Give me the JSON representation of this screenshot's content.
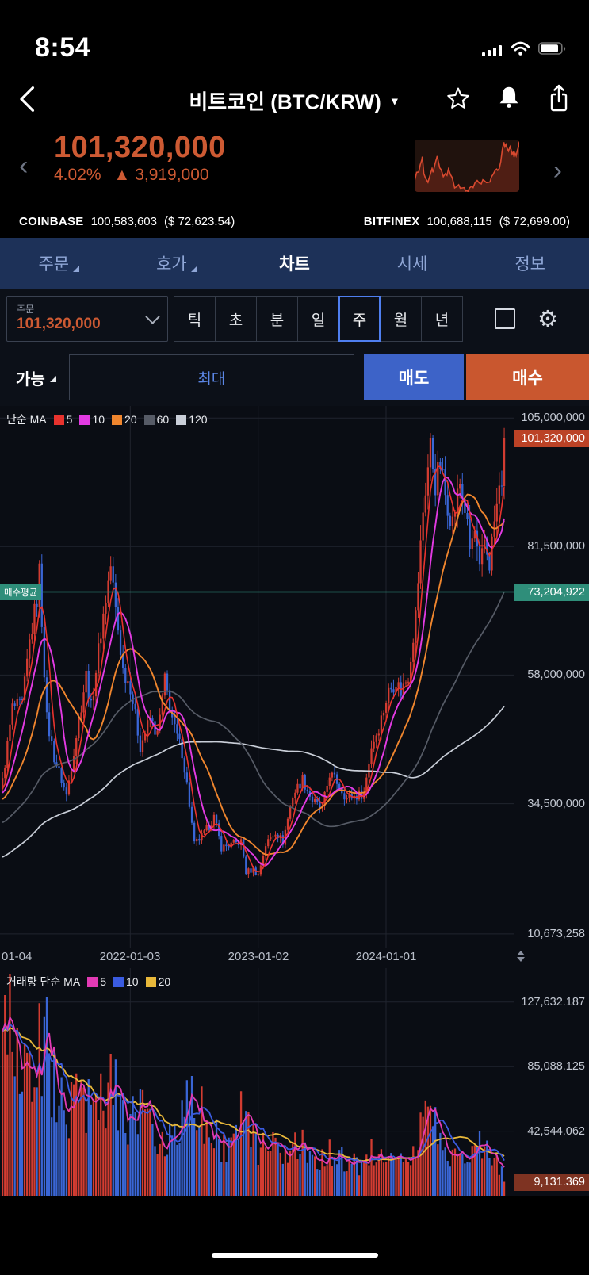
{
  "status_bar": {
    "time": "8:54"
  },
  "header": {
    "title": "비트코인 (BTC/KRW)"
  },
  "price": {
    "current": "101,320,000",
    "change_pct": "4.02%",
    "change_arrow": "▲",
    "change_abs": "3,919,000"
  },
  "exchanges": [
    {
      "name": "COINBASE",
      "price": "100,583,603",
      "usd": "($ 72,623.54)"
    },
    {
      "name": "BITFINEX",
      "price": "100,688,115",
      "usd": "($ 72,699.00)"
    }
  ],
  "tabs": [
    {
      "label": "주문",
      "submenu": true
    },
    {
      "label": "호가",
      "submenu": true
    },
    {
      "label": "차트",
      "active": true
    },
    {
      "label": "시세"
    },
    {
      "label": "정보"
    }
  ],
  "order_box": {
    "label": "주문",
    "value": "101,320,000"
  },
  "timeframes": [
    "틱",
    "초",
    "분",
    "일",
    "주",
    "월",
    "년"
  ],
  "selected_timeframe": "주",
  "trade": {
    "avail_label": "가능",
    "max_label": "최대",
    "sell_label": "매도",
    "buy_label": "매수"
  },
  "colors": {
    "accent_orange": "#cd5a33",
    "sell_blue": "#3d63c8",
    "buy_orange": "#c9572f",
    "tab_bg": "#1d3158",
    "teal": "#2f8e7a",
    "candle_up": "#d23c31",
    "candle_down": "#3a66d6",
    "ma5": "#e8332e",
    "ma10": "#e23ae2",
    "ma20": "#f0862e",
    "ma60": "#565b66",
    "ma120": "#c9ced8",
    "vma5": "#e23ab4",
    "vma10": "#3a5be0",
    "vma20": "#e8b83a",
    "grid": "#20242e",
    "badge_price_bg": "#bb4226",
    "badge_vol_bg": "#7e3322",
    "spark_line": "#d8492f",
    "spark_fill": "rgba(190,60,35,0.30)"
  },
  "chart_data": {
    "type": "candlestick+volume",
    "title": "BTC/KRW weekly candles with MA overlay",
    "weeks_total": 205,
    "x_tick_labels": [
      "01-04",
      "2022-01-03",
      "2023-01-02",
      "2024-01-01"
    ],
    "x_tick_weeks": [
      0,
      52,
      104,
      156
    ],
    "price_axis": {
      "min": 8200000,
      "max": 107200000,
      "labels": [
        {
          "value": 105000000,
          "label": "105,000,000"
        },
        {
          "value": 81500000,
          "label": "81,500,000"
        },
        {
          "value": 58000000,
          "label": "58,000,000"
        },
        {
          "value": 34500000,
          "label": "34,500,000"
        },
        {
          "value": 10673258,
          "label": "10,673,258"
        }
      ]
    },
    "current_price": 101320000,
    "current_price_label": "101,320,000",
    "buy_average": {
      "label": "매수평균",
      "value": 73204922,
      "value_label": "73,204,922"
    },
    "ma_legend": {
      "title": "단순 MA",
      "periods": [
        5,
        10,
        20,
        60,
        120
      ]
    },
    "volume_legend": {
      "title": "거래량 단순 MA",
      "periods": [
        5,
        10,
        20
      ]
    },
    "volume_axis": {
      "max": 150000,
      "labels": [
        {
          "value": 127632.187,
          "label": "127,632.187"
        },
        {
          "value": 85088.125,
          "label": "85,088.125"
        },
        {
          "value": 42544.062,
          "label": "42,544.062"
        }
      ],
      "current": 9131.369,
      "current_label": "9,131.369"
    },
    "close_anchors": [
      [
        0,
        38500000
      ],
      [
        4,
        52000000
      ],
      [
        8,
        52500000
      ],
      [
        11,
        64000000
      ],
      [
        14,
        72000000
      ],
      [
        15,
        77000000
      ],
      [
        18,
        50000000
      ],
      [
        21,
        43000000
      ],
      [
        26,
        36000000
      ],
      [
        30,
        47000000
      ],
      [
        34,
        58000000
      ],
      [
        36,
        52000000
      ],
      [
        40,
        66000000
      ],
      [
        44,
        78000000
      ],
      [
        46,
        70000000
      ],
      [
        49,
        59000000
      ],
      [
        52,
        56000000
      ],
      [
        56,
        45000000
      ],
      [
        60,
        50000000
      ],
      [
        63,
        47000000
      ],
      [
        66,
        57000000
      ],
      [
        70,
        48000000
      ],
      [
        73,
        44000000
      ],
      [
        75,
        38000000
      ],
      [
        78,
        27000000
      ],
      [
        82,
        29000000
      ],
      [
        86,
        32000000
      ],
      [
        89,
        26500000
      ],
      [
        93,
        27000000
      ],
      [
        97,
        27500000
      ],
      [
        99,
        22000000
      ],
      [
        102,
        22500000
      ],
      [
        104,
        21500000
      ],
      [
        107,
        27000000
      ],
      [
        111,
        29500000
      ],
      [
        114,
        27500000
      ],
      [
        118,
        36000000
      ],
      [
        122,
        39000000
      ],
      [
        126,
        35000000
      ],
      [
        130,
        33500000
      ],
      [
        133,
        40000000
      ],
      [
        136,
        38500000
      ],
      [
        140,
        35500000
      ],
      [
        144,
        36000000
      ],
      [
        147,
        36500000
      ],
      [
        150,
        45000000
      ],
      [
        153,
        48500000
      ],
      [
        157,
        55000000
      ],
      [
        160,
        57000000
      ],
      [
        162,
        55000000
      ],
      [
        165,
        58000000
      ],
      [
        168,
        69000000
      ],
      [
        171,
        88000000
      ],
      [
        174,
        100000000
      ],
      [
        176,
        93000000
      ],
      [
        178,
        96500000
      ],
      [
        180,
        91000000
      ],
      [
        183,
        86000000
      ],
      [
        186,
        93000000
      ],
      [
        188,
        88500000
      ],
      [
        190,
        81000000
      ],
      [
        192,
        84000000
      ],
      [
        194,
        76500000
      ],
      [
        196,
        82500000
      ],
      [
        198,
        78500000
      ],
      [
        200,
        86000000
      ],
      [
        202,
        91500000
      ],
      [
        203,
        94000000
      ],
      [
        204,
        101320000
      ]
    ],
    "volume_anchors": [
      [
        0,
        95000
      ],
      [
        3,
        130000
      ],
      [
        6,
        85000
      ],
      [
        10,
        70000
      ],
      [
        14,
        90000
      ],
      [
        18,
        110000
      ],
      [
        20,
        75000
      ],
      [
        24,
        60000
      ],
      [
        27,
        55000
      ],
      [
        30,
        65000
      ],
      [
        34,
        60000
      ],
      [
        38,
        55000
      ],
      [
        42,
        70000
      ],
      [
        44,
        80000
      ],
      [
        48,
        55000
      ],
      [
        52,
        48000
      ],
      [
        56,
        60000
      ],
      [
        60,
        45000
      ],
      [
        64,
        40000
      ],
      [
        68,
        42000
      ],
      [
        72,
        50000
      ],
      [
        75,
        70000
      ],
      [
        78,
        75000
      ],
      [
        82,
        45000
      ],
      [
        86,
        38000
      ],
      [
        90,
        34000
      ],
      [
        94,
        30000
      ],
      [
        98,
        60000
      ],
      [
        100,
        45000
      ],
      [
        104,
        32000
      ],
      [
        107,
        48000
      ],
      [
        111,
        36000
      ],
      [
        114,
        30000
      ],
      [
        118,
        38000
      ],
      [
        122,
        32000
      ],
      [
        126,
        26000
      ],
      [
        130,
        24000
      ],
      [
        133,
        30000
      ],
      [
        136,
        25000
      ],
      [
        140,
        22000
      ],
      [
        144,
        20000
      ],
      [
        148,
        22000
      ],
      [
        151,
        30000
      ],
      [
        155,
        26000
      ],
      [
        158,
        28000
      ],
      [
        161,
        26000
      ],
      [
        164,
        24000
      ],
      [
        168,
        30000
      ],
      [
        171,
        45000
      ],
      [
        174,
        52000
      ],
      [
        177,
        38000
      ],
      [
        180,
        30000
      ],
      [
        183,
        28000
      ],
      [
        186,
        26000
      ],
      [
        189,
        24000
      ],
      [
        192,
        26000
      ],
      [
        194,
        42000
      ],
      [
        197,
        28000
      ],
      [
        200,
        24000
      ],
      [
        202,
        20000
      ],
      [
        204,
        9131.369
      ]
    ],
    "prehistory": {
      "weeks": 120,
      "start": 12000000,
      "end": 37000000
    }
  }
}
